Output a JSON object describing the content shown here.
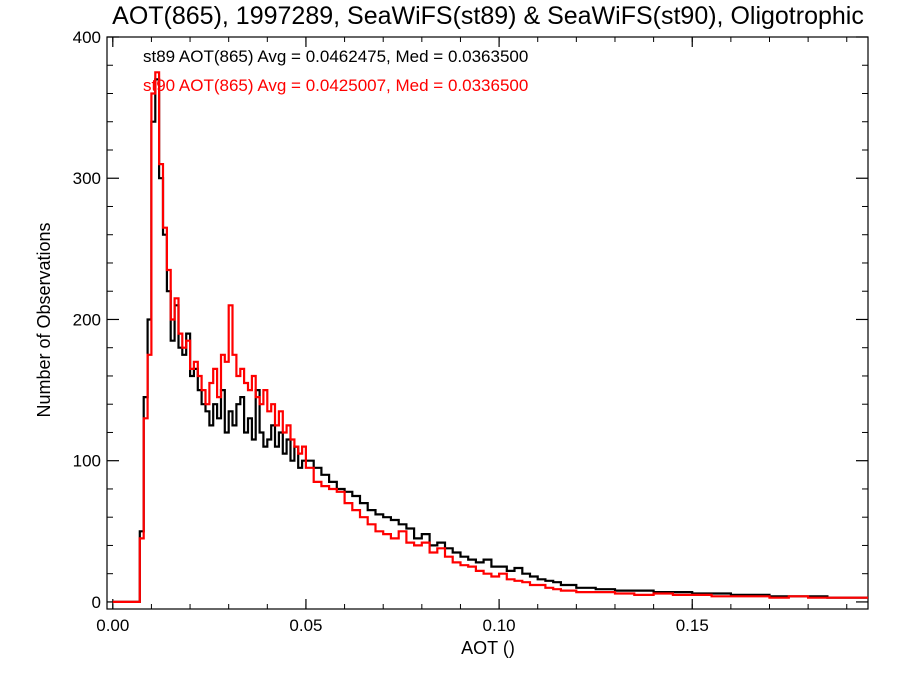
{
  "chart_data": {
    "type": "step-histogram",
    "title": "AOT(865), 1997289, SeaWiFS(st89) & SeaWiFS(st90), Oligotrophic",
    "xlabel": "AOT ()",
    "ylabel": "Number of Observations",
    "xlim": [
      -0.0015,
      0.1955
    ],
    "ylim": [
      -5,
      400
    ],
    "x_ticks": [
      {
        "value": 0.0,
        "label": "0.00"
      },
      {
        "value": 0.05,
        "label": "0.05"
      },
      {
        "value": 0.1,
        "label": "0.10"
      },
      {
        "value": 0.15,
        "label": "0.15"
      }
    ],
    "y_ticks": [
      {
        "value": 0,
        "label": "0"
      },
      {
        "value": 100,
        "label": "100"
      },
      {
        "value": 200,
        "label": "200"
      },
      {
        "value": 300,
        "label": "300"
      },
      {
        "value": 400,
        "label": "400"
      }
    ],
    "legend_position": "top-left",
    "series": [
      {
        "key": "st89",
        "color": "#000000",
        "stat_text": "st89 AOT(865) Avg = 0.0462475, Med = 0.0363500",
        "x": [
          0.0,
          0.005,
          0.006,
          0.007,
          0.008,
          0.009,
          0.01,
          0.011,
          0.012,
          0.013,
          0.014,
          0.015,
          0.016,
          0.017,
          0.018,
          0.019,
          0.02,
          0.021,
          0.022,
          0.023,
          0.024,
          0.025,
          0.026,
          0.027,
          0.028,
          0.029,
          0.03,
          0.031,
          0.032,
          0.033,
          0.034,
          0.035,
          0.036,
          0.037,
          0.038,
          0.039,
          0.04,
          0.041,
          0.042,
          0.043,
          0.044,
          0.045,
          0.046,
          0.047,
          0.048,
          0.049,
          0.05,
          0.052,
          0.054,
          0.056,
          0.058,
          0.06,
          0.062,
          0.064,
          0.066,
          0.068,
          0.07,
          0.072,
          0.074,
          0.076,
          0.078,
          0.08,
          0.082,
          0.084,
          0.086,
          0.088,
          0.09,
          0.092,
          0.094,
          0.096,
          0.098,
          0.1,
          0.102,
          0.104,
          0.106,
          0.108,
          0.11,
          0.112,
          0.114,
          0.116,
          0.118,
          0.12,
          0.125,
          0.13,
          0.135,
          0.14,
          0.145,
          0.15,
          0.155,
          0.16,
          0.165,
          0.17,
          0.175,
          0.18,
          0.185,
          0.19,
          0.194
        ],
        "y": [
          0,
          0,
          0,
          50,
          145,
          200,
          340,
          370,
          300,
          260,
          220,
          185,
          210,
          180,
          175,
          190,
          160,
          165,
          150,
          140,
          135,
          125,
          140,
          130,
          150,
          120,
          135,
          125,
          140,
          145,
          120,
          130,
          115,
          150,
          120,
          110,
          115,
          125,
          110,
          120,
          105,
          115,
          100,
          110,
          95,
          100,
          100,
          95,
          90,
          85,
          80,
          78,
          75,
          70,
          65,
          62,
          60,
          58,
          55,
          52,
          45,
          48,
          40,
          42,
          38,
          35,
          32,
          30,
          28,
          30,
          25,
          25,
          22,
          24,
          20,
          18,
          16,
          15,
          14,
          12,
          12,
          10,
          9,
          8,
          8,
          7,
          7,
          6,
          6,
          5,
          5,
          4,
          4,
          4,
          3,
          3,
          3
        ]
      },
      {
        "key": "st90",
        "color": "#ff0000",
        "stat_text": "st90 AOT(865) Avg = 0.0425007, Med = 0.0336500",
        "x": [
          0.0,
          0.005,
          0.006,
          0.007,
          0.008,
          0.009,
          0.01,
          0.011,
          0.012,
          0.013,
          0.014,
          0.015,
          0.016,
          0.017,
          0.018,
          0.019,
          0.02,
          0.021,
          0.022,
          0.023,
          0.024,
          0.025,
          0.026,
          0.027,
          0.028,
          0.029,
          0.03,
          0.031,
          0.032,
          0.033,
          0.034,
          0.035,
          0.036,
          0.037,
          0.038,
          0.039,
          0.04,
          0.041,
          0.042,
          0.043,
          0.044,
          0.045,
          0.046,
          0.047,
          0.048,
          0.049,
          0.05,
          0.052,
          0.054,
          0.056,
          0.058,
          0.06,
          0.062,
          0.064,
          0.066,
          0.068,
          0.07,
          0.072,
          0.074,
          0.076,
          0.078,
          0.08,
          0.082,
          0.084,
          0.086,
          0.088,
          0.09,
          0.092,
          0.094,
          0.096,
          0.098,
          0.1,
          0.102,
          0.104,
          0.106,
          0.108,
          0.11,
          0.112,
          0.114,
          0.116,
          0.118,
          0.12,
          0.125,
          0.13,
          0.135,
          0.14,
          0.145,
          0.15,
          0.155,
          0.16,
          0.165,
          0.17,
          0.175,
          0.18,
          0.185,
          0.19,
          0.194
        ],
        "y": [
          0,
          0,
          0,
          45,
          130,
          175,
          360,
          375,
          310,
          265,
          235,
          200,
          215,
          190,
          180,
          185,
          165,
          170,
          160,
          150,
          140,
          155,
          165,
          145,
          175,
          170,
          210,
          175,
          160,
          165,
          155,
          150,
          160,
          145,
          140,
          150,
          135,
          140,
          125,
          135,
          120,
          125,
          115,
          110,
          105,
          110,
          95,
          85,
          82,
          80,
          78,
          70,
          65,
          60,
          55,
          50,
          48,
          45,
          50,
          42,
          40,
          42,
          35,
          38,
          32,
          28,
          26,
          25,
          22,
          20,
          18,
          20,
          16,
          15,
          14,
          12,
          12,
          10,
          9,
          8,
          8,
          7,
          7,
          6,
          5,
          6,
          5,
          5,
          4,
          4,
          4,
          3,
          4,
          3,
          3,
          3,
          3
        ]
      }
    ]
  }
}
